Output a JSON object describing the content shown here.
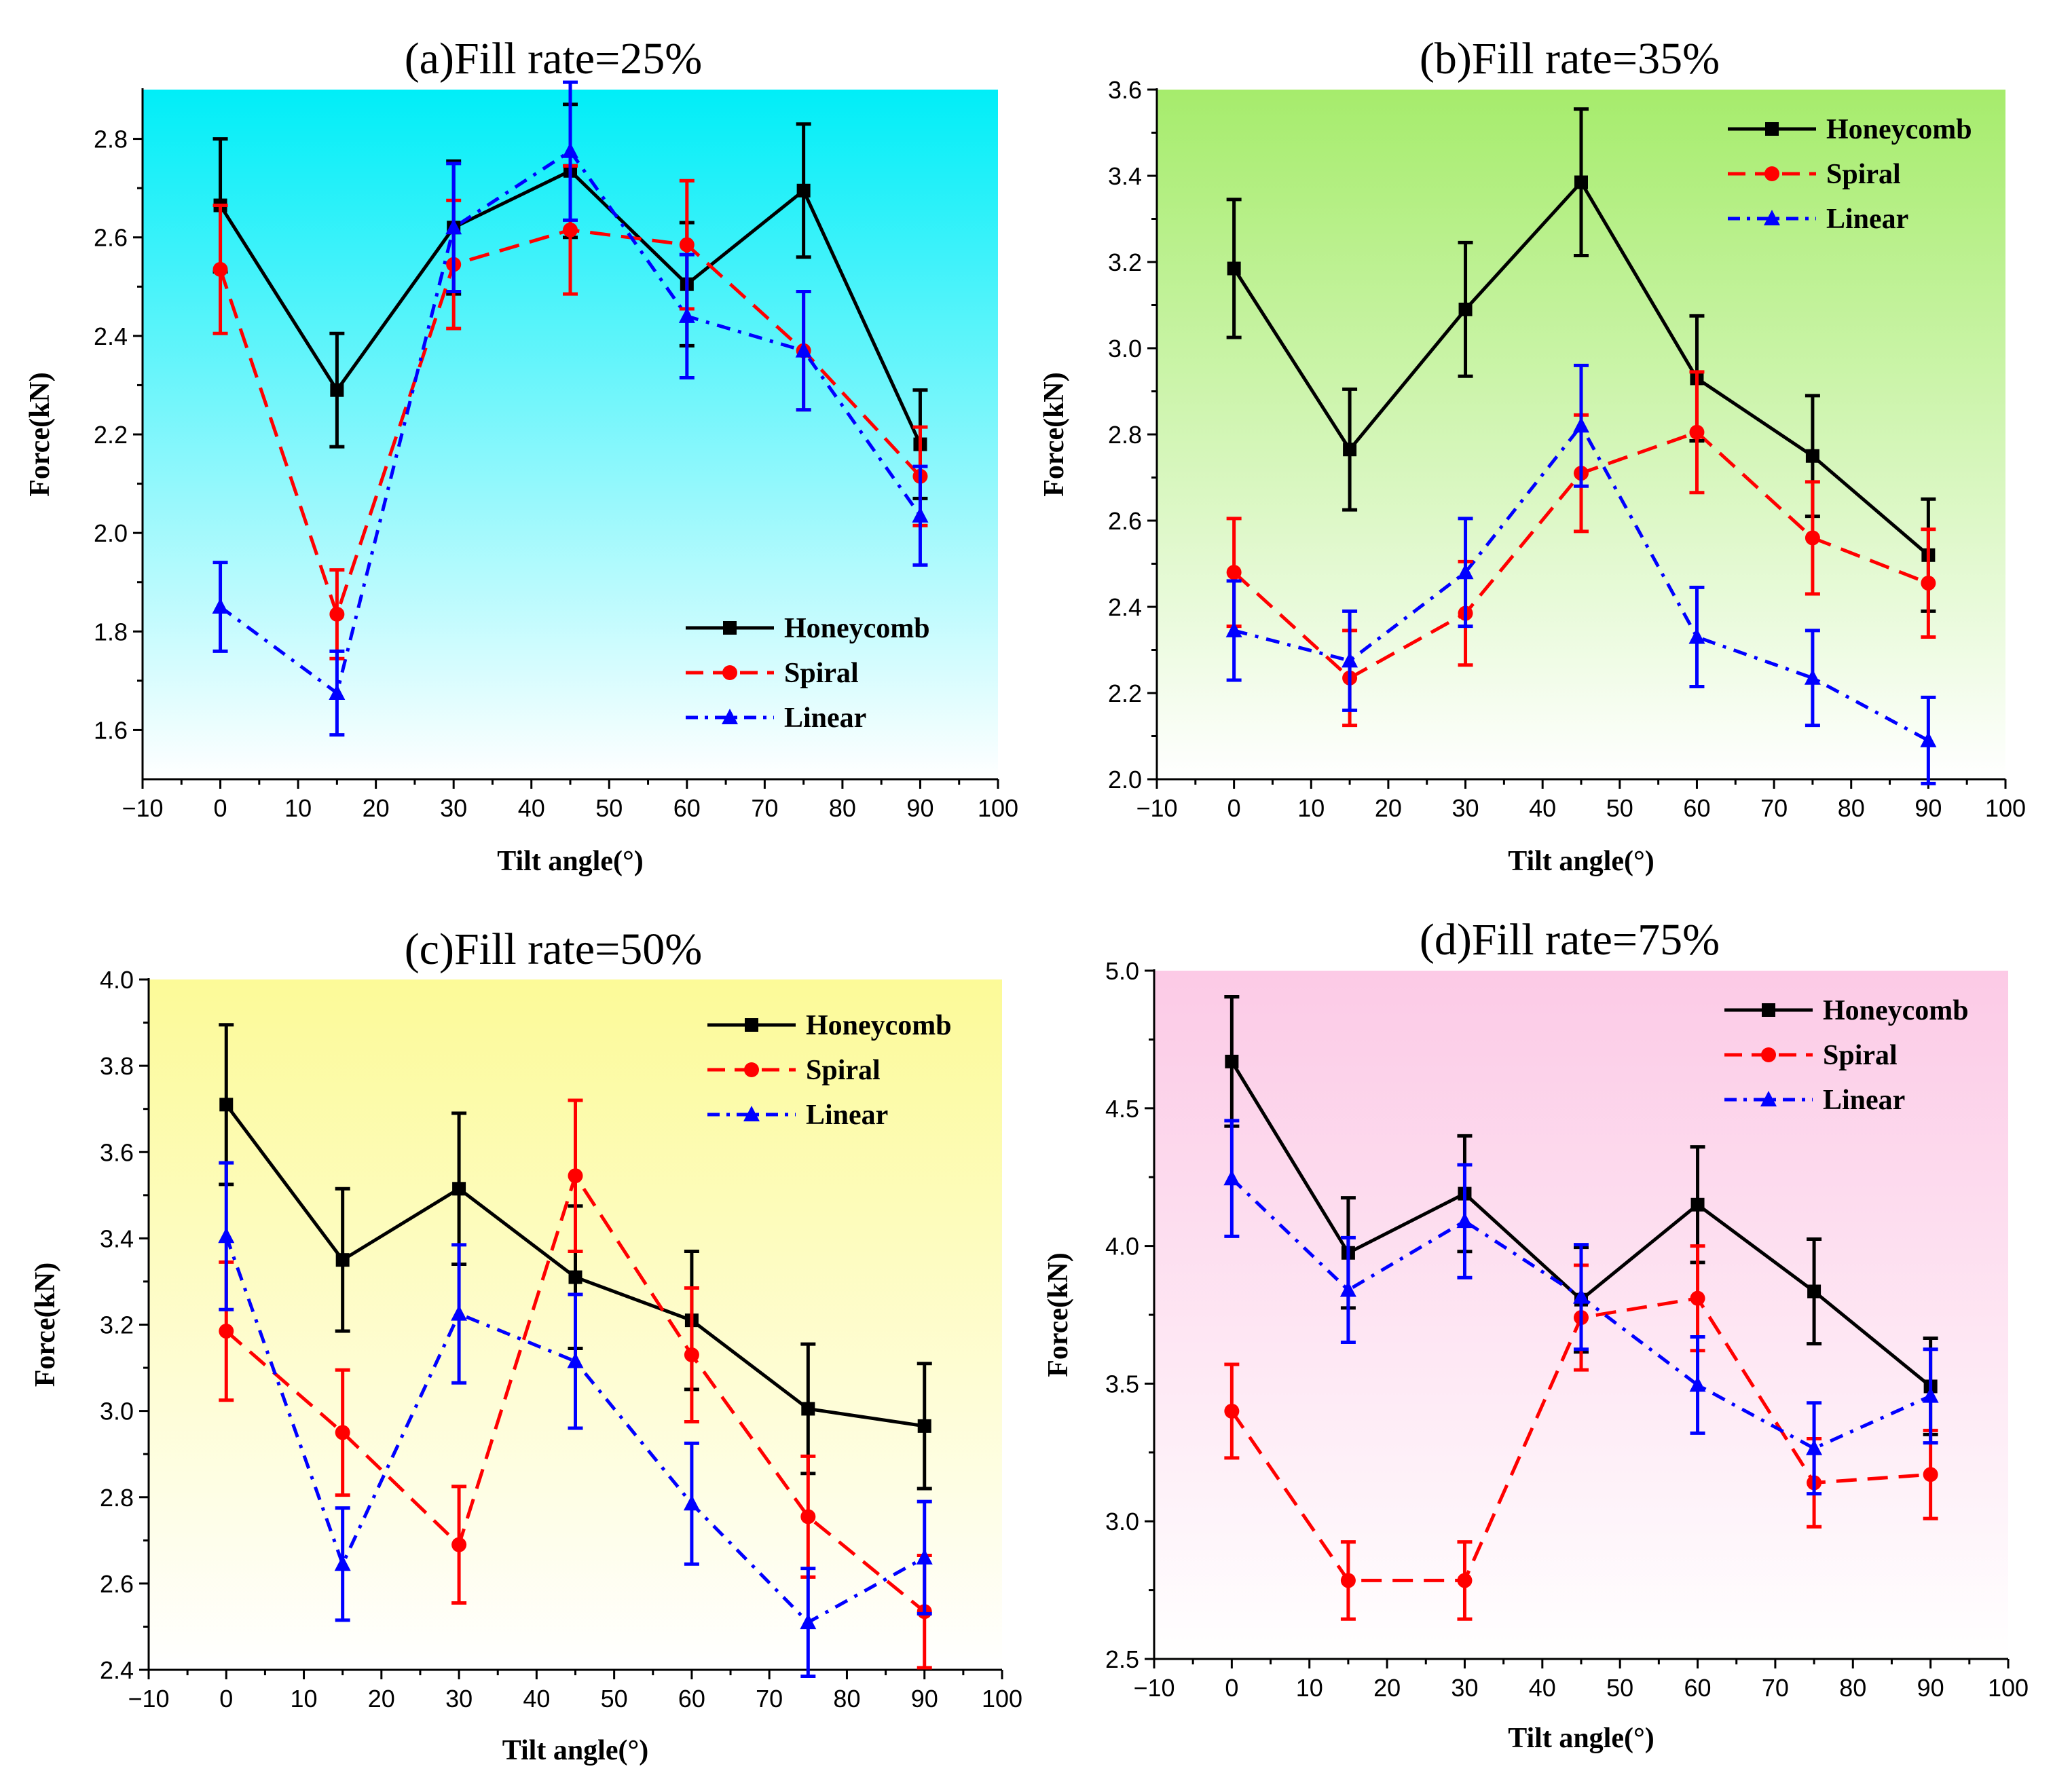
{
  "chart_data": [
    {
      "type": "line",
      "title": "(a)Fill rate=25%",
      "xlabel": "Tilt angle(°)",
      "ylabel": "Force(kN)",
      "xlim": [
        -10,
        100
      ],
      "ylim": [
        1.5,
        2.9
      ],
      "xticks": [
        -10,
        0,
        10,
        20,
        30,
        40,
        50,
        60,
        70,
        80,
        90,
        100
      ],
      "yticks": [
        1.6,
        1.8,
        2.0,
        2.2,
        2.4,
        2.6,
        2.8
      ],
      "tick_labels_x": [
        "−10",
        "0",
        "10",
        "20",
        "30",
        "40",
        "50",
        "60",
        "70",
        "80",
        "90",
        "100"
      ],
      "tick_labels_y": [
        "1.6",
        "1.8",
        "2.0",
        "2.2",
        "2.4",
        "2.6",
        "2.8"
      ],
      "background": [
        "#00eef8",
        "#ffffff"
      ],
      "legend_position": "bottom-right",
      "x": [
        0,
        15,
        30,
        45,
        60,
        75,
        90
      ],
      "series": [
        {
          "name": "Honeycomb",
          "values": [
            2.665,
            2.29,
            2.62,
            2.735,
            2.505,
            2.695,
            2.18
          ],
          "errors": [
            0.135,
            0.115,
            0.135,
            0.135,
            0.125,
            0.135,
            0.11
          ]
        },
        {
          "name": "Spiral",
          "values": [
            2.535,
            1.835,
            2.545,
            2.615,
            2.585,
            2.37,
            2.115
          ],
          "errors": [
            0.13,
            0.09,
            0.13,
            0.13,
            0.13,
            0.12,
            0.1
          ]
        },
        {
          "name": "Linear",
          "values": [
            1.85,
            1.675,
            2.62,
            2.775,
            2.44,
            2.37,
            2.035
          ],
          "errors": [
            0.09,
            0.085,
            0.13,
            0.14,
            0.125,
            0.12,
            0.1
          ]
        }
      ]
    },
    {
      "type": "line",
      "title": "(b)Fill rate=35%",
      "xlabel": "Tilt angle(°)",
      "ylabel": "Force(kN)",
      "xlim": [
        -10,
        100
      ],
      "ylim": [
        2.0,
        3.6
      ],
      "xticks": [
        -10,
        0,
        10,
        20,
        30,
        40,
        50,
        60,
        70,
        80,
        90,
        100
      ],
      "yticks": [
        2.0,
        2.2,
        2.4,
        2.6,
        2.8,
        3.0,
        3.2,
        3.4,
        3.6
      ],
      "tick_labels_x": [
        "−10",
        "0",
        "10",
        "20",
        "30",
        "40",
        "50",
        "60",
        "70",
        "80",
        "90",
        "100"
      ],
      "tick_labels_y": [
        "2.0",
        "2.2",
        "2.4",
        "2.6",
        "2.8",
        "3.0",
        "3.2",
        "3.4",
        "3.6"
      ],
      "background": [
        "#a6ec6c",
        "#ffffff"
      ],
      "legend_position": "top-right",
      "x": [
        0,
        15,
        30,
        45,
        60,
        75,
        90
      ],
      "series": [
        {
          "name": "Honeycomb",
          "values": [
            3.185,
            2.765,
            3.09,
            3.385,
            2.93,
            2.75,
            2.52
          ],
          "errors": [
            0.16,
            0.14,
            0.155,
            0.17,
            0.145,
            0.14,
            0.13
          ]
        },
        {
          "name": "Spiral",
          "values": [
            2.48,
            2.235,
            2.385,
            2.71,
            2.805,
            2.56,
            2.455
          ],
          "errors": [
            0.125,
            0.11,
            0.12,
            0.135,
            0.14,
            0.13,
            0.125
          ]
        },
        {
          "name": "Linear",
          "values": [
            2.345,
            2.275,
            2.48,
            2.82,
            2.33,
            2.235,
            2.09
          ],
          "errors": [
            0.115,
            0.115,
            0.125,
            0.14,
            0.115,
            0.11,
            0.1
          ]
        }
      ]
    },
    {
      "type": "line",
      "title": "(c)Fill rate=50%",
      "xlabel": "Tilt angle(°)",
      "ylabel": "Force(kN)",
      "xlim": [
        -10,
        100
      ],
      "ylim": [
        2.4,
        4.0
      ],
      "xticks": [
        -10,
        0,
        10,
        20,
        30,
        40,
        50,
        60,
        70,
        80,
        90,
        100
      ],
      "yticks": [
        2.4,
        2.6,
        2.8,
        3.0,
        3.2,
        3.4,
        3.6,
        3.8,
        4.0
      ],
      "tick_labels_x": [
        "−10",
        "0",
        "10",
        "20",
        "30",
        "40",
        "50",
        "60",
        "70",
        "80",
        "90",
        "100"
      ],
      "tick_labels_y": [
        "2.4",
        "2.6",
        "2.8",
        "3.0",
        "3.2",
        "3.4",
        "3.6",
        "3.8",
        "4.0"
      ],
      "background": [
        "#fcfa98",
        "#ffffff"
      ],
      "legend_position": "top-right",
      "x": [
        0,
        15,
        30,
        45,
        60,
        75,
        90
      ],
      "series": [
        {
          "name": "Honeycomb",
          "values": [
            3.71,
            3.35,
            3.515,
            3.31,
            3.21,
            3.005,
            2.965
          ],
          "errors": [
            0.185,
            0.165,
            0.175,
            0.165,
            0.16,
            0.15,
            0.145
          ]
        },
        {
          "name": "Spiral",
          "values": [
            3.185,
            2.95,
            2.69,
            3.545,
            3.13,
            2.755,
            2.535
          ],
          "errors": [
            0.16,
            0.145,
            0.135,
            0.175,
            0.155,
            0.14,
            0.13
          ]
        },
        {
          "name": "Linear",
          "values": [
            3.405,
            2.645,
            3.225,
            3.115,
            2.785,
            2.51,
            2.66
          ],
          "errors": [
            0.17,
            0.13,
            0.16,
            0.155,
            0.14,
            0.125,
            0.13
          ]
        }
      ]
    },
    {
      "type": "line",
      "title": "(d)Fill rate=75%",
      "xlabel": "Tilt angle(°)",
      "ylabel": "Force(kN)",
      "xlim": [
        -10,
        100
      ],
      "ylim": [
        2.5,
        5.0
      ],
      "xticks": [
        -10,
        0,
        10,
        20,
        30,
        40,
        50,
        60,
        70,
        80,
        90,
        100
      ],
      "yticks": [
        2.5,
        3.0,
        3.5,
        4.0,
        4.5,
        5.0
      ],
      "tick_labels_x": [
        "−10",
        "0",
        "10",
        "20",
        "30",
        "40",
        "50",
        "60",
        "70",
        "80",
        "90",
        "100"
      ],
      "tick_labels_y": [
        "2.5",
        "3.0",
        "3.5",
        "4.0",
        "4.5",
        "5.0"
      ],
      "background": [
        "#fccae6",
        "#ffffff"
      ],
      "legend_position": "top-right",
      "x": [
        0,
        15,
        30,
        45,
        60,
        75,
        90
      ],
      "series": [
        {
          "name": "Honeycomb",
          "values": [
            4.67,
            3.975,
            4.19,
            3.805,
            4.15,
            3.835,
            3.49
          ],
          "errors": [
            0.235,
            0.2,
            0.21,
            0.19,
            0.21,
            0.19,
            0.175
          ]
        },
        {
          "name": "Spiral",
          "values": [
            3.4,
            2.785,
            2.785,
            3.74,
            3.81,
            3.14,
            3.17
          ],
          "errors": [
            0.17,
            0.14,
            0.14,
            0.19,
            0.19,
            0.16,
            0.16
          ]
        },
        {
          "name": "Linear",
          "values": [
            4.245,
            3.84,
            4.09,
            3.815,
            3.495,
            3.265,
            3.455
          ],
          "errors": [
            0.21,
            0.19,
            0.205,
            0.19,
            0.175,
            0.165,
            0.17
          ]
        }
      ]
    }
  ],
  "series_colors": {
    "Honeycomb": "#000000",
    "Spiral": "#ff0000",
    "Linear": "#0000ff"
  },
  "series_markers": {
    "Honeycomb": "square",
    "Spiral": "circle",
    "Linear": "triangle"
  }
}
